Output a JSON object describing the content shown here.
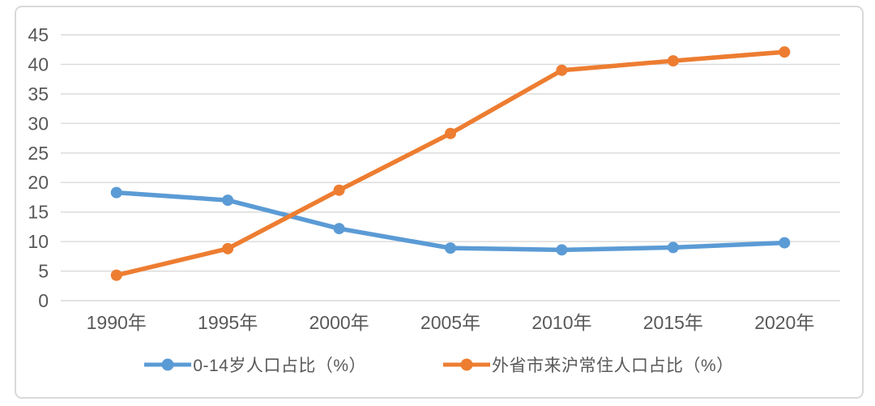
{
  "colors": {
    "series_blue": "#5B9BD5",
    "series_orange": "#ED7D31",
    "gridline": "#D9D9D9",
    "axis_text": "#595959",
    "card_border": "#D9D9D9",
    "background": "#FFFFFF"
  },
  "chart_data": {
    "type": "line",
    "title": "",
    "categories": [
      "1990年",
      "1995年",
      "2000年",
      "2005年",
      "2010年",
      "2015年",
      "2020年"
    ],
    "series": [
      {
        "name": "0-14岁人口占比（%）",
        "color": "#5B9BD5",
        "values": [
          18.3,
          17.0,
          12.2,
          8.9,
          8.6,
          9.0,
          9.8
        ]
      },
      {
        "name": "外省市来沪常住人口占比（%）",
        "color": "#ED7D31",
        "values": [
          4.3,
          8.8,
          18.7,
          28.3,
          39.0,
          40.6,
          42.1
        ]
      }
    ],
    "ylim": [
      0,
      45
    ],
    "yticks": [
      "0",
      "5",
      "10",
      "15",
      "20",
      "25",
      "30",
      "35",
      "40",
      "45"
    ],
    "grid": "horizontal",
    "legend_position": "bottom",
    "marker": "circle"
  }
}
